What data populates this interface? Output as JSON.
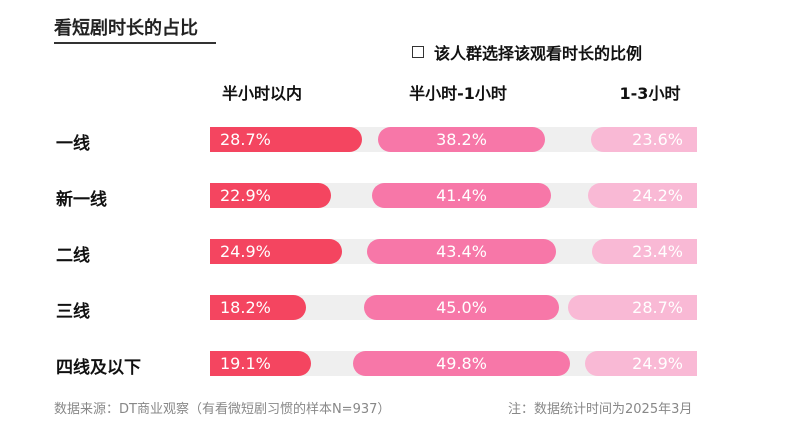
{
  "title": "看短剧时长的占比",
  "legend_text": "该人群选择该观看时长的比例",
  "footer": {
    "source": "数据来源：DT商业观察（有看微短剧习惯的样本N=937）",
    "note": "注：数据统计时间为2025年3月"
  },
  "colors": {
    "series_1": "#f44560",
    "series_2": "#f777a8",
    "series_3": "#f9b9d5",
    "track": "#efefef"
  },
  "chart_data": {
    "type": "bar",
    "categories": [
      "一线",
      "新一线",
      "二线",
      "三线",
      "四线及以下"
    ],
    "series": [
      {
        "name": "半小时以内",
        "values": [
          28.7,
          22.9,
          24.9,
          18.2,
          19.1
        ],
        "labels": [
          "28.7%",
          "22.9%",
          "24.9%",
          "18.2%",
          "19.1%"
        ]
      },
      {
        "name": "半小时-1小时",
        "values": [
          38.2,
          41.4,
          43.4,
          45.0,
          49.8
        ],
        "labels": [
          "38.2%",
          "41.4%",
          "43.4%",
          "45.0%",
          "49.8%"
        ]
      },
      {
        "name": "1-3小时",
        "values": [
          23.6,
          24.2,
          23.4,
          28.7,
          24.9
        ],
        "labels": [
          "23.6%",
          "24.2%",
          "23.4%",
          "28.7%",
          "24.9%"
        ]
      }
    ],
    "xlim": [
      0,
      100
    ],
    "legend": "top-right"
  }
}
